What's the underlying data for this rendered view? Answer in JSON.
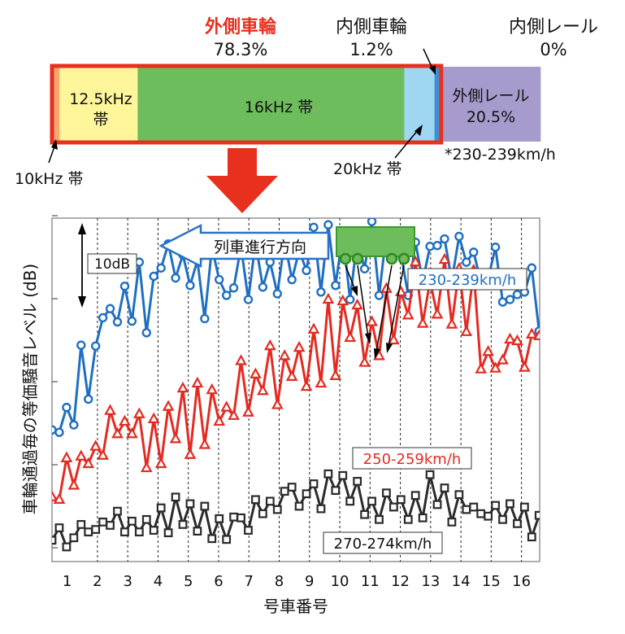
{
  "breakdown": {
    "outer_wheel": {
      "label": "外側車輪",
      "value": "78.3%"
    },
    "inner_wheel": {
      "label": "内側車輪",
      "value": "1.2%"
    },
    "inner_rail": {
      "label": "内側レール",
      "value": "0%"
    },
    "outer_rail": {
      "label": "外側レール",
      "value": "20.5%"
    },
    "band_10k": "10kHz 帯",
    "band_12_5k": "12.5kHz\n帯",
    "band_16k": "16kHz 帯",
    "band_20k": "20kHz 帯",
    "speed_note": "*230-239km/h",
    "segments": [
      {
        "name": "10kHz",
        "fraction": 0.0139,
        "color": "#f5a86e"
      },
      {
        "name": "12.5kHz",
        "fraction": 0.1601,
        "color": "#fff59a"
      },
      {
        "name": "16kHz",
        "fraction": 0.5467,
        "color": "#6dbd5c"
      },
      {
        "name": "20kHz",
        "fraction": 0.062,
        "color": "#9fd6f2"
      },
      {
        "name": "inner-wheel",
        "fraction": 0.012,
        "color": "#3f8fd4"
      },
      {
        "name": "outer-rail",
        "fraction": 0.205,
        "color": "#a79bce"
      }
    ],
    "highlight_color": "#e8301f"
  },
  "direction_label": "列車進行方向",
  "scale_label": "10dB",
  "chart_data": {
    "type": "line",
    "xlabel": "号車番号",
    "ylabel": "車輪通過毎の等価騒音レベル (dB)",
    "x_ticks": [
      "1",
      "2",
      "3",
      "4",
      "5",
      "6",
      "7",
      "8",
      "9",
      "10",
      "11",
      "12",
      "13",
      "14",
      "15",
      "16"
    ],
    "xlim": [
      0.5,
      16.6
    ],
    "ylim_scale_dB": [
      0,
      40
    ],
    "x": [
      0.5,
      0.74,
      0.98,
      1.22,
      1.46,
      1.7,
      1.94,
      2.18,
      2.42,
      2.66,
      2.9,
      3.14,
      3.38,
      3.62,
      3.86,
      4.1,
      4.34,
      4.58,
      4.82,
      5.06,
      5.3,
      5.54,
      5.78,
      6.02,
      6.26,
      6.5,
      6.74,
      6.98,
      7.22,
      7.46,
      7.7,
      7.94,
      8.18,
      8.42,
      8.66,
      8.9,
      9.14,
      9.38,
      9.62,
      9.86,
      10.1,
      10.34,
      10.58,
      10.82,
      11.06,
      11.3,
      11.54,
      11.78,
      12.02,
      12.26,
      12.5,
      12.74,
      12.98,
      13.22,
      13.46,
      13.7,
      13.94,
      14.18,
      14.42,
      14.66,
      14.9,
      15.14,
      15.38,
      15.62,
      15.86,
      16.1,
      16.34,
      16.58
    ],
    "series": [
      {
        "name": "230-239km/h",
        "color": "#1f6fc1",
        "marker": "circle",
        "values": [
          14.2,
          13.9,
          16.9,
          14.8,
          24.4,
          17.9,
          24.3,
          27.7,
          28.8,
          27.2,
          31.5,
          27.3,
          34.4,
          25.9,
          32.7,
          33.7,
          36.6,
          32.5,
          35.3,
          31.6,
          34.6,
          27.6,
          36.2,
          32.3,
          30.4,
          31.3,
          36.3,
          29.9,
          36.8,
          31.4,
          34.4,
          30.6,
          37.0,
          32.3,
          35.8,
          33.4,
          38.6,
          30.8,
          38.9,
          31.6,
          37.8,
          29.9,
          37.2,
          33.6,
          39.3,
          30.4,
          37.9,
          36.3,
          35.4,
          30.4,
          36.8,
          32.1,
          36.3,
          36.4,
          37.2,
          32.2,
          37.5,
          34.4,
          35.6,
          32.0,
          32.4,
          36.2,
          29.6,
          29.9,
          30.5,
          30.8,
          33.7,
          26.1
        ]
      },
      {
        "name": "250-259km/h",
        "color": "#e32b22",
        "marker": "triangle",
        "values": [
          6.1,
          5.8,
          10.8,
          7.5,
          11.0,
          10.1,
          12.2,
          11.1,
          16.5,
          13.7,
          15.2,
          13.7,
          16.1,
          9.6,
          15.5,
          10.1,
          17.0,
          13.1,
          19.2,
          11.2,
          19.8,
          12.4,
          19.0,
          15.2,
          16.9,
          15.9,
          22.5,
          16.3,
          20.9,
          18.9,
          24.3,
          17.2,
          23.1,
          20.6,
          24.1,
          19.4,
          26.3,
          19.8,
          29.9,
          20.7,
          29.7,
          25.3,
          29.2,
          22.3,
          27.2,
          23.1,
          31.2,
          25.0,
          30.8,
          28.0,
          34.4,
          27.0,
          32.1,
          28.1,
          34.7,
          26.9,
          33.6,
          26.0,
          33.4,
          21.5,
          23.6,
          21.6,
          22.6,
          25.1,
          24.9,
          21.7,
          25.7,
          25.5
        ]
      },
      {
        "name": "270-274km/h",
        "color": "#2b2b2b",
        "marker": "square",
        "values": [
          0.9,
          2.4,
          0.1,
          1.2,
          2.8,
          1.9,
          2.2,
          3.1,
          2.7,
          4.4,
          1.9,
          3.2,
          1.9,
          3.4,
          2.1,
          4.8,
          1.8,
          6.1,
          2.8,
          5.3,
          2.0,
          5.0,
          1.1,
          3.5,
          1.0,
          3.7,
          3.6,
          2.1,
          5.8,
          4.1,
          5.6,
          4.6,
          6.8,
          7.3,
          5.0,
          6.5,
          7.7,
          4.7,
          8.9,
          6.9,
          8.7,
          5.6,
          8.0,
          4.0,
          5.6,
          3.4,
          6.6,
          4.9,
          5.8,
          3.4,
          6.3,
          3.6,
          8.8,
          5.2,
          7.2,
          3.1,
          6.4,
          4.6,
          4.9,
          4.1,
          3.8,
          5.1,
          3.4,
          5.3,
          2.9,
          4.9,
          1.3,
          3.9
        ]
      }
    ]
  }
}
